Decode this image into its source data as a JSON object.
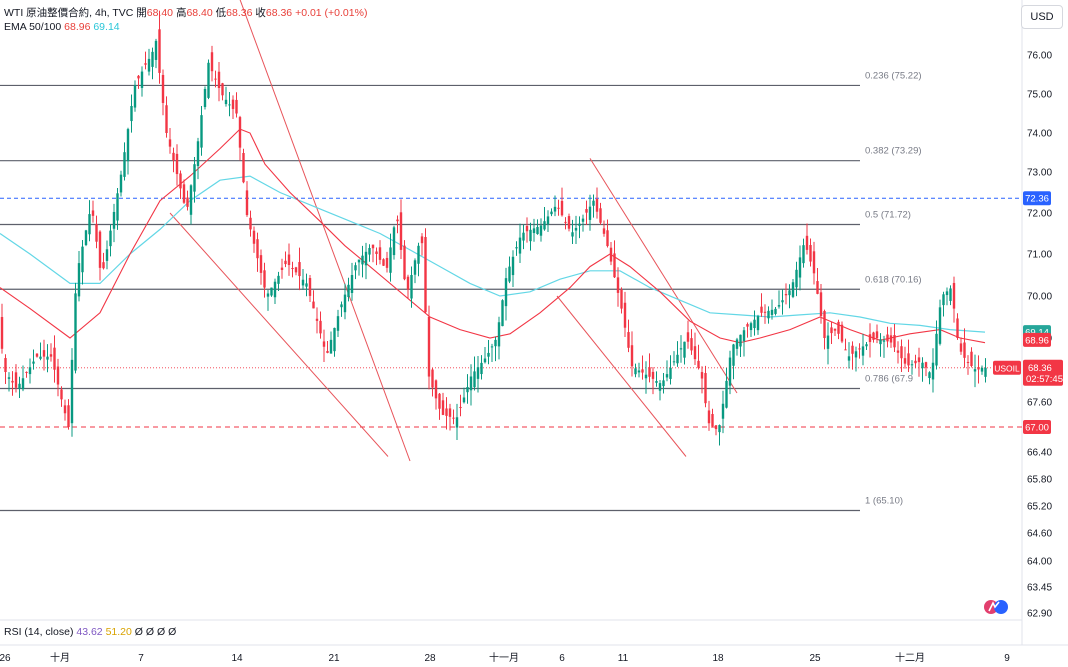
{
  "header": {
    "symbol": "WTI 原油整價合約, 4h, TVC",
    "open_label": "開",
    "open": "68.40",
    "high_label": "高",
    "high": "68.40",
    "low_label": "低",
    "low": "68.36",
    "close_label": "收",
    "close": "68.36",
    "change": "+0.01 (+0.01%)",
    "ema_label": "EMA 50/100",
    "ema50": "68.96",
    "ema100": "69.14"
  },
  "rsi": {
    "label": "RSI (14, close)",
    "v1": "43.62",
    "v2": "51.20",
    "extras": [
      "Ø",
      "Ø",
      "Ø",
      "Ø"
    ]
  },
  "currency_button": "USD",
  "colors": {
    "up": "#089981",
    "down": "#f23645",
    "ema50": "#f23645",
    "ema100": "#63d7e6",
    "fib": "#5d606b",
    "channel": "#e8545a"
  },
  "chart_data": {
    "type": "candlestick",
    "timeframe": "4h",
    "ylim": [
      62.9,
      76.6
    ],
    "y_ticks": [
      "76.00",
      "75.00",
      "74.00",
      "73.00",
      "72.00",
      "71.00",
      "70.00",
      "69.00",
      "68.40",
      "67.60",
      "66.40",
      "65.80",
      "65.20",
      "64.60",
      "64.00",
      "63.45",
      "62.90"
    ],
    "x_ticks": [
      "26",
      "十月",
      "7",
      "14",
      "21",
      "28",
      "十一月",
      "6",
      "11",
      "18",
      "25",
      "十二月",
      "9"
    ],
    "fib_levels": [
      {
        "label": "0.236 (75.22)",
        "value": 75.22
      },
      {
        "label": "0.382 (73.29)",
        "value": 73.29
      },
      {
        "label": "0.5 (71.72)",
        "value": 71.72
      },
      {
        "label": "0.618 (70.16)",
        "value": 70.16
      },
      {
        "label": "0.786 (67.9",
        "value": 67.9
      },
      {
        "label": "1 (65.10)",
        "value": 65.1
      }
    ],
    "price_labels": [
      {
        "text": "72.36",
        "value": 72.36,
        "color": "#2962ff"
      },
      {
        "text": "67.00",
        "value": 67.0,
        "color": "#f23645"
      },
      {
        "text": "69.14",
        "value": 69.14,
        "color": "#26a69a"
      },
      {
        "text": "68.96",
        "value": 68.96,
        "color": "#f23645"
      }
    ],
    "last_price": {
      "symbol": "USOIL",
      "value": 68.36,
      "text": "68.36",
      "countdown": "02:57:45"
    },
    "ema50": [
      [
        0,
        70.2
      ],
      [
        30,
        69.7
      ],
      [
        70,
        69.0
      ],
      [
        100,
        69.6
      ],
      [
        130,
        71.0
      ],
      [
        160,
        72.3
      ],
      [
        190,
        72.9
      ],
      [
        220,
        73.6
      ],
      [
        240,
        74.1
      ],
      [
        250,
        74.0
      ],
      [
        265,
        73.2
      ],
      [
        290,
        72.5
      ],
      [
        320,
        71.8
      ],
      [
        345,
        71.2
      ],
      [
        370,
        70.7
      ],
      [
        400,
        70.1
      ],
      [
        430,
        69.5
      ],
      [
        460,
        69.2
      ],
      [
        490,
        69.0
      ],
      [
        510,
        69.1
      ],
      [
        540,
        69.6
      ],
      [
        570,
        70.2
      ],
      [
        590,
        70.7
      ],
      [
        610,
        71.0
      ],
      [
        630,
        70.7
      ],
      [
        660,
        70.1
      ],
      [
        690,
        69.4
      ],
      [
        720,
        69.0
      ],
      [
        740,
        68.9
      ],
      [
        760,
        69.0
      ],
      [
        790,
        69.2
      ],
      [
        820,
        69.5
      ],
      [
        850,
        69.2
      ],
      [
        880,
        68.95
      ],
      [
        910,
        69.1
      ],
      [
        940,
        69.2
      ],
      [
        960,
        69.0
      ],
      [
        985,
        68.9
      ]
    ],
    "ema100": [
      [
        0,
        71.5
      ],
      [
        30,
        71.0
      ],
      [
        70,
        70.3
      ],
      [
        100,
        70.3
      ],
      [
        130,
        71.0
      ],
      [
        160,
        71.6
      ],
      [
        190,
        72.3
      ],
      [
        220,
        72.8
      ],
      [
        250,
        72.9
      ],
      [
        280,
        72.5
      ],
      [
        320,
        72.1
      ],
      [
        350,
        71.8
      ],
      [
        380,
        71.5
      ],
      [
        410,
        71.1
      ],
      [
        440,
        70.7
      ],
      [
        470,
        70.3
      ],
      [
        500,
        70.0
      ],
      [
        530,
        70.1
      ],
      [
        560,
        70.4
      ],
      [
        590,
        70.6
      ],
      [
        620,
        70.6
      ],
      [
        650,
        70.2
      ],
      [
        680,
        69.9
      ],
      [
        710,
        69.6
      ],
      [
        740,
        69.55
      ],
      [
        770,
        69.5
      ],
      [
        800,
        69.55
      ],
      [
        830,
        69.6
      ],
      [
        860,
        69.5
      ],
      [
        890,
        69.35
      ],
      [
        920,
        69.3
      ],
      [
        950,
        69.2
      ],
      [
        985,
        69.14
      ]
    ],
    "channel_lines": [
      [
        223,
        78.0,
        410,
        66.2
      ],
      [
        170,
        72.0,
        388,
        66.3
      ],
      [
        590,
        73.35,
        737,
        67.8
      ],
      [
        557,
        70.0,
        686,
        66.3
      ]
    ]
  }
}
